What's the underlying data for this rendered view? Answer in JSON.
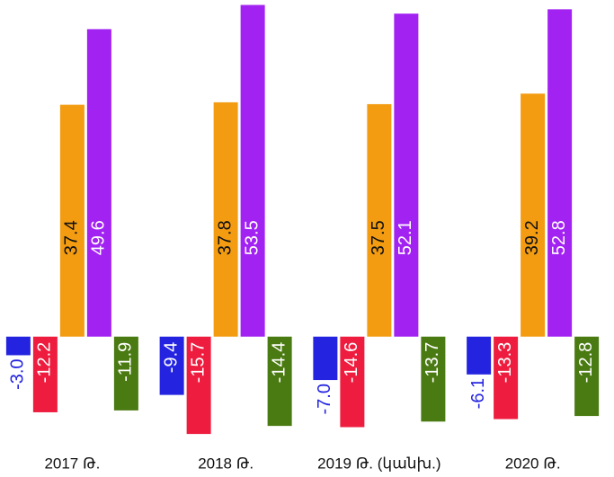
{
  "chart_data": {
    "type": "bar",
    "categories": [
      "2017 Թ.",
      "2018 Թ.",
      "2019 Թ. (կանխ.)",
      "2020 Թ."
    ],
    "series": [
      {
        "color": "#2424e0",
        "values": [
          -3.0,
          -9.4,
          -7.0,
          -6.1
        ],
        "value_labels": [
          "-3.0",
          "-9.4",
          "-7.0",
          "-6.1"
        ]
      },
      {
        "color": "#ee1c3e",
        "values": [
          -12.2,
          -15.7,
          -14.6,
          -13.3
        ],
        "value_labels": [
          "-12.2",
          "-15.7",
          "-14.6",
          "-13.3"
        ]
      },
      {
        "color": "#f39c12",
        "values": [
          37.4,
          37.8,
          37.5,
          39.2
        ],
        "value_labels": [
          "37.4",
          "37.8",
          "37.5",
          "39.2"
        ]
      },
      {
        "color": "#a222f2",
        "values": [
          49.6,
          53.5,
          52.1,
          52.8
        ],
        "value_labels": [
          "49.6",
          "53.5",
          "52.1",
          "52.8"
        ]
      },
      {
        "color": "#4a7a12",
        "values": [
          -11.9,
          -14.4,
          -13.7,
          -12.8
        ],
        "value_labels": [
          "-11.9",
          "-14.4",
          "-13.7",
          "-12.8"
        ]
      }
    ],
    "ylim": [
      -16.7,
      54.3
    ]
  }
}
